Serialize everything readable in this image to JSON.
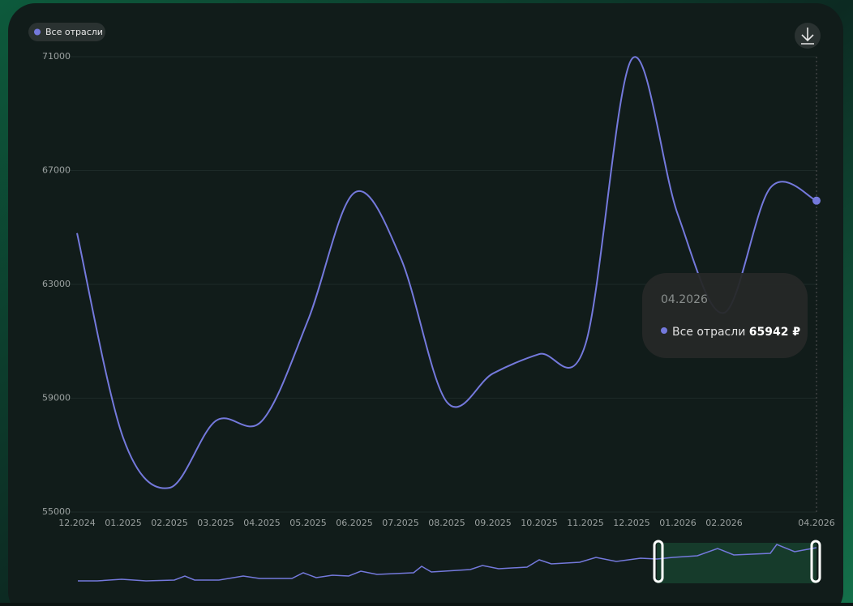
{
  "chart_data": {
    "type": "line",
    "legend": "top-left",
    "grid": true,
    "categories": [
      "12.2024",
      "01.2025",
      "02.2025",
      "03.2025",
      "04.2025",
      "05.2025",
      "06.2025",
      "07.2025",
      "08.2025",
      "09.2025",
      "10.2025",
      "11.2025",
      "12.2025",
      "01.2026",
      "02.2026",
      null,
      "04.2026"
    ],
    "series": [
      {
        "name": "Все отрасли",
        "color": "#7479dc",
        "values": [
          64800,
          57600,
          55850,
          58200,
          58200,
          61750,
          66220,
          63940,
          58870,
          59870,
          60550,
          60890,
          70910,
          65450,
          62000,
          66390,
          65942
        ],
        "value_labels": [
          null,
          null,
          null,
          null,
          null,
          null,
          null,
          null,
          null,
          null,
          null,
          null,
          null,
          null,
          null,
          null,
          "65942 ₽"
        ]
      }
    ],
    "ylim": [
      55000,
      71000
    ],
    "yticks": [
      55000,
      59000,
      63000,
      67000,
      71000
    ]
  }
}
